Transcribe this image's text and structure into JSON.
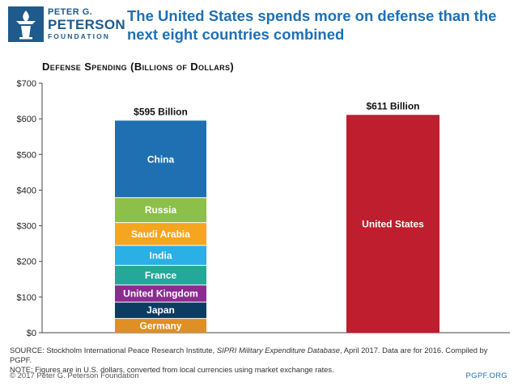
{
  "brand": {
    "line1": "PETER G.",
    "line2": "PETERSON",
    "line3": "FOUNDATION",
    "color": "#1f5a8c"
  },
  "headline": "The United States spends more on defense than the next eight countries combined",
  "chart_data": {
    "type": "bar",
    "subtype": "stacked",
    "title": "Defense Spending (Billions of Dollars)",
    "ylim": [
      0,
      700
    ],
    "yticks": [
      0,
      100,
      200,
      300,
      400,
      500,
      600,
      700
    ],
    "ytick_labels": [
      "$0",
      "$100",
      "$200",
      "$300",
      "$400",
      "$500",
      "$600",
      "$700"
    ],
    "grid": false,
    "bars": [
      {
        "total_label": "$595 Billion",
        "total": 595,
        "segments": [
          {
            "name": "Germany",
            "value": 41,
            "color": "#e08f24"
          },
          {
            "name": "Japan",
            "value": 46,
            "color": "#0d3c63"
          },
          {
            "name": "United Kingdom",
            "value": 48,
            "color": "#8b2c91"
          },
          {
            "name": "France",
            "value": 55,
            "color": "#25a79a"
          },
          {
            "name": "India",
            "value": 56,
            "color": "#2ab0e6"
          },
          {
            "name": "Saudi Arabia",
            "value": 64,
            "color": "#f5a51f"
          },
          {
            "name": "Russia",
            "value": 70,
            "color": "#8cc049"
          },
          {
            "name": "China",
            "value": 215,
            "color": "#1f6fb3"
          }
        ]
      },
      {
        "total_label": "$611 Billion",
        "total": 611,
        "segments": [
          {
            "name": "United States",
            "value": 611,
            "color": "#be1e2d"
          }
        ]
      }
    ]
  },
  "source": {
    "prefix": "SOURCE: Stockholm International Peace Research Institute, ",
    "italic": "SIPRI Military Expenditure Database",
    "suffix": ", April 2017. Data are for 2016. Compiled by PGPF.",
    "note": "NOTE: Figures are in U.S. dollars, converted from local currencies using market exchange rates."
  },
  "footer": {
    "copyright": "© 2017 Peter G. Peterson Foundation",
    "site": "PGPF.ORG"
  }
}
